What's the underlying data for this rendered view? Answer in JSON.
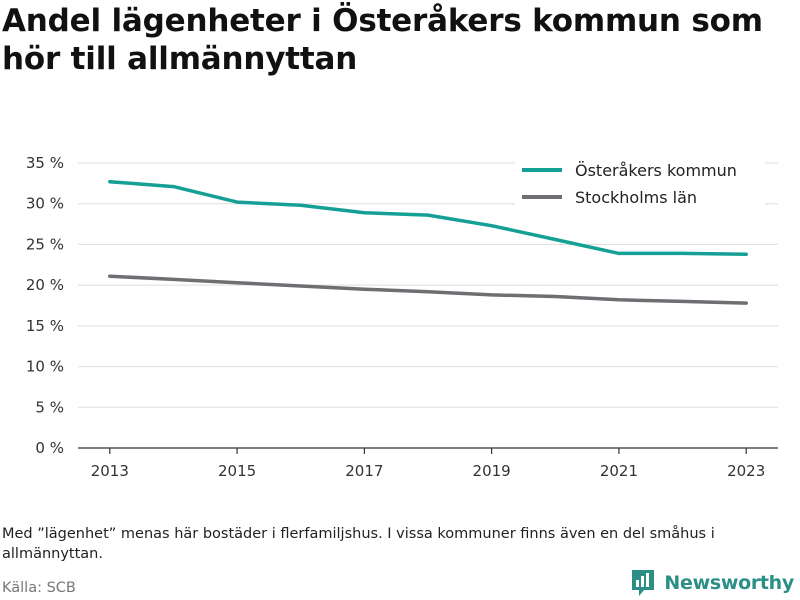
{
  "title": "Andel lägenheter i Österåkers kommun som hör till allmännyttan",
  "footnote": "Med ”lägenhet” menas här bostäder i flerfamiljshus. I vissa kommuner finns även en del småhus i allmännyttan.",
  "source": "Källa: SCB",
  "brand": {
    "name": "Newsworthy",
    "icon": "newsworthy-logo-icon",
    "color": "#2b8f86"
  },
  "chart_data": {
    "type": "line",
    "title": "Andel lägenheter i Österåkers kommun som hör till allmännyttan",
    "xlabel": "",
    "ylabel": "",
    "x": [
      2013,
      2014,
      2015,
      2016,
      2017,
      2018,
      2019,
      2020,
      2021,
      2022,
      2023
    ],
    "x_ticks": [
      "2013",
      "2015",
      "2017",
      "2019",
      "2021",
      "2023"
    ],
    "y_ticks": [
      "0 %",
      "5 %",
      "10 %",
      "15 %",
      "20 %",
      "25 %",
      "30 %",
      "35 %"
    ],
    "ylim": [
      0,
      35
    ],
    "grid": true,
    "legend_position": "top-right",
    "series": [
      {
        "name": "Österåkers kommun",
        "color": "#14a095",
        "values": [
          32.7,
          32.1,
          30.2,
          29.8,
          28.9,
          28.6,
          27.3,
          25.6,
          23.9,
          23.9,
          23.8
        ]
      },
      {
        "name": "Stockholms län",
        "color": "#6e6e73",
        "values": [
          21.1,
          20.7,
          20.3,
          19.9,
          19.5,
          19.2,
          18.8,
          18.6,
          18.2,
          18.0,
          17.8
        ]
      }
    ]
  }
}
